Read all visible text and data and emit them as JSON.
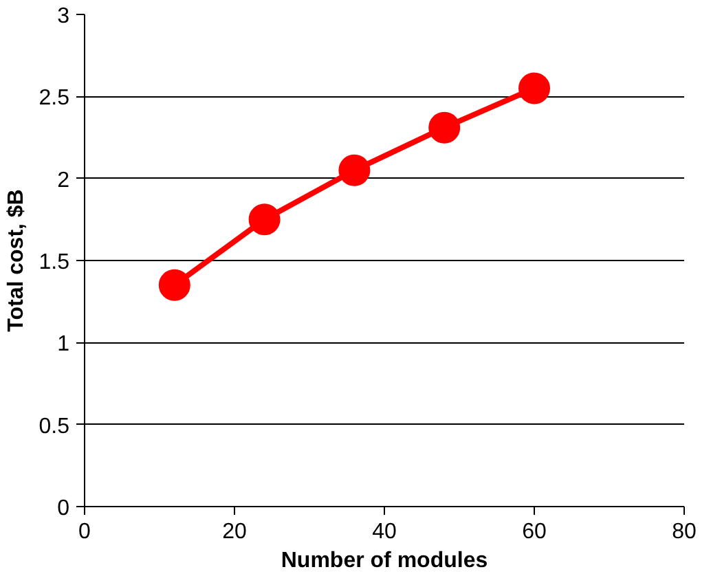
{
  "chart_data": {
    "type": "line",
    "xlabel": "Number of modules",
    "ylabel": "Total cost, $B",
    "x": [
      12,
      24,
      36,
      48,
      60
    ],
    "series": [
      {
        "color": "#ff0000",
        "values": [
          1.35,
          1.75,
          2.05,
          2.31,
          2.55
        ]
      }
    ],
    "xlim": [
      0,
      80
    ],
    "xticks": [
      0,
      20,
      40,
      60,
      80
    ],
    "ylim": [
      0,
      3
    ],
    "yticks": [
      0,
      0.5,
      1,
      1.5,
      2,
      2.5,
      3
    ],
    "grid": "y",
    "marker": "circle",
    "line_style": "solid"
  }
}
